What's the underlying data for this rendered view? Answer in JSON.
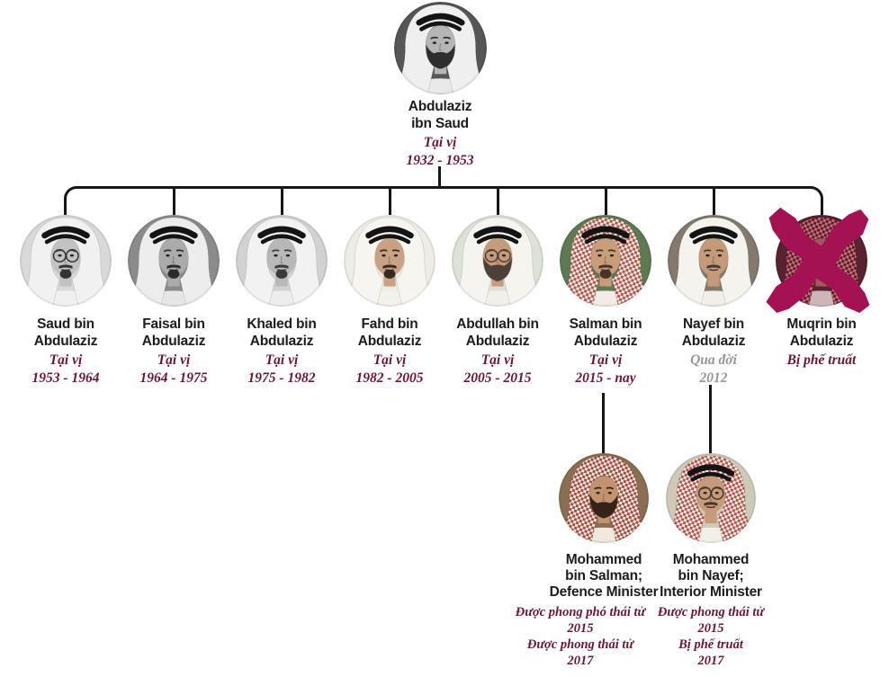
{
  "colors": {
    "line": "#161616",
    "name_text": "#1c1c1c",
    "maroon_text": "#6b1638",
    "gray_text": "#979797",
    "cross": "#a51253",
    "background": "#ffffff"
  },
  "tree": {
    "root": {
      "id": "abdulaziz",
      "name_lines": [
        "Abdulaziz",
        "ibn Saud"
      ],
      "status_lines": [
        {
          "text": "Tại vị",
          "color": "maroon"
        },
        {
          "text": "1932 - 1953",
          "color": "maroon"
        }
      ],
      "crossed_out": false,
      "photo": {
        "bg": "#565656",
        "skin": "#b5b5b5",
        "hair": "#2e2e2e",
        "robe": "#e9e9e9",
        "scarf": "plain",
        "scarfColor": "#efefef",
        "agal": true,
        "glasses": false,
        "beard": "full"
      }
    },
    "generation2": [
      {
        "id": "saud",
        "name_lines": [
          "Saud bin",
          "Abdulaziz"
        ],
        "status_lines": [
          {
            "text": "Tại vị",
            "color": "maroon"
          },
          {
            "text": "1953 - 1964",
            "color": "maroon"
          }
        ],
        "crossed_out": false,
        "photo": {
          "bg": "#d9d9d9",
          "skin": "#c2c2c2",
          "hair": "#333333",
          "robe": "#f0f0f0",
          "scarf": "plain",
          "scarfColor": "#f1f1f1",
          "agal": true,
          "glasses": true,
          "beard": "goatee"
        }
      },
      {
        "id": "faisal",
        "name_lines": [
          "Faisal bin",
          "Abdulaziz"
        ],
        "status_lines": [
          {
            "text": "Tại vị",
            "color": "maroon"
          },
          {
            "text": "1964 - 1975",
            "color": "maroon"
          }
        ],
        "crossed_out": false,
        "photo": {
          "bg": "#8b8b8b",
          "skin": "#ababab",
          "hair": "#2b2b2b",
          "robe": "#e6e6e6",
          "scarf": "plain",
          "scarfColor": "#ededed",
          "agal": true,
          "glasses": false,
          "beard": "goatee"
        }
      },
      {
        "id": "khaled",
        "name_lines": [
          "Khaled bin",
          "Abdulaziz"
        ],
        "status_lines": [
          {
            "text": "Tại vị",
            "color": "maroon"
          },
          {
            "text": "1975 - 1982",
            "color": "maroon"
          }
        ],
        "crossed_out": false,
        "photo": {
          "bg": "#d2d2d2",
          "skin": "#b8b8b8",
          "hair": "#3a3a3a",
          "robe": "#ededed",
          "scarf": "plain",
          "scarfColor": "#f2f2f2",
          "agal": true,
          "glasses": false,
          "beard": "goatee"
        }
      },
      {
        "id": "fahd",
        "name_lines": [
          "Fahd bin",
          "Abdulaziz"
        ],
        "status_lines": [
          {
            "text": "Tại vị",
            "color": "maroon"
          },
          {
            "text": "1982 - 2005",
            "color": "maroon"
          }
        ],
        "crossed_out": false,
        "photo": {
          "bg": "#efece6",
          "skin": "#c9a183",
          "hair": "#352a20",
          "robe": "#f4f1ea",
          "scarf": "plain",
          "scarfColor": "#f7f5f0",
          "agal": true,
          "glasses": false,
          "beard": "goatee"
        }
      },
      {
        "id": "abdullah",
        "name_lines": [
          "Abdullah bin",
          "Abdulaziz"
        ],
        "status_lines": [
          {
            "text": "Tại vị",
            "color": "maroon"
          },
          {
            "text": "2005 - 2015",
            "color": "maroon"
          }
        ],
        "crossed_out": false,
        "photo": {
          "bg": "#dde2d6",
          "skin": "#c59b7c",
          "hair": "#4c4038",
          "robe": "#f2efe8",
          "scarf": "plain",
          "scarfColor": "#f6f4ef",
          "agal": true,
          "glasses": true,
          "beard": "full"
        }
      },
      {
        "id": "salman",
        "name_lines": [
          "Salman bin",
          "Abdulaziz"
        ],
        "status_lines": [
          {
            "text": "Tại vị",
            "color": "maroon"
          },
          {
            "text": "2015 - nay",
            "color": "maroon"
          }
        ],
        "crossed_out": false,
        "photo": {
          "bg": "#5d7a52",
          "skin": "#c79d7a",
          "hair": "#463528",
          "robe": "#f1ece4",
          "scarf": "checker",
          "checkerDark": "#b2544c",
          "checkerBase": "#f3efe8",
          "agal": true,
          "glasses": false,
          "beard": "goatee"
        }
      },
      {
        "id": "nayef",
        "name_lines": [
          "Nayef bin",
          "Abdulaziz"
        ],
        "status_lines": [
          {
            "text": "Qua đời",
            "color": "gray"
          },
          {
            "text": "2012",
            "color": "gray"
          }
        ],
        "crossed_out": false,
        "photo": {
          "bg": "#837a6d",
          "skin": "#c59a78",
          "hair": "#3f3b37",
          "robe": "#f2efe8",
          "scarf": "plain",
          "scarfColor": "#f5f3ee",
          "agal": true,
          "glasses": false,
          "beard": "mustache"
        }
      },
      {
        "id": "muqrin",
        "name_lines": [
          "Muqrin bin",
          "Abdulaziz"
        ],
        "status_lines": [
          {
            "text": "Bị phế truất",
            "color": "maroon"
          }
        ],
        "crossed_out": true,
        "photo": {
          "bg": "#5a2130",
          "skin": "#a05a5d",
          "hair": "#47141c",
          "robe": "#cdb6b8",
          "scarf": "checker",
          "checkerDark": "#6d1527",
          "checkerBase": "#b4777d",
          "agal": false,
          "glasses": false,
          "beard": "mustache"
        }
      }
    ],
    "generation3": [
      {
        "id": "mbs",
        "parent_id": "salman",
        "name_lines": [
          "Mohammed",
          "bin Salman;",
          "Defence Minister"
        ],
        "status_lines": [
          {
            "text": "Được phong phó thái tử",
            "color": "maroon"
          },
          {
            "text": "2015",
            "color": "maroon"
          },
          {
            "text": "Được phong thái tử",
            "color": "maroon"
          },
          {
            "text": "2017",
            "color": "maroon"
          }
        ],
        "crossed_out": false,
        "photo": {
          "bg": "#8a6e51",
          "skin": "#c2936f",
          "hair": "#332318",
          "robe": "#efe9e0",
          "scarf": "checker",
          "checkerDark": "#a84a3f",
          "checkerBase": "#f1ebe2",
          "agal": false,
          "glasses": false,
          "beard": "full"
        }
      },
      {
        "id": "mbn",
        "parent_id": "nayef",
        "name_lines": [
          "Mohammed",
          "bin Nayef;",
          "Interior Minister"
        ],
        "status_lines": [
          {
            "text": "Được phong thái tử",
            "color": "maroon"
          },
          {
            "text": "2015",
            "color": "maroon"
          },
          {
            "text": "Bị phế truất",
            "color": "maroon"
          },
          {
            "text": "2017",
            "color": "maroon"
          }
        ],
        "crossed_out": false,
        "photo": {
          "bg": "#cfc9b8",
          "skin": "#c59b7a",
          "hair": "#403830",
          "robe": "#f2efe8",
          "scarf": "checker",
          "checkerDark": "#b5524a",
          "checkerBase": "#f3efe8",
          "agal": true,
          "glasses": true,
          "beard": "mustache"
        }
      }
    ]
  }
}
